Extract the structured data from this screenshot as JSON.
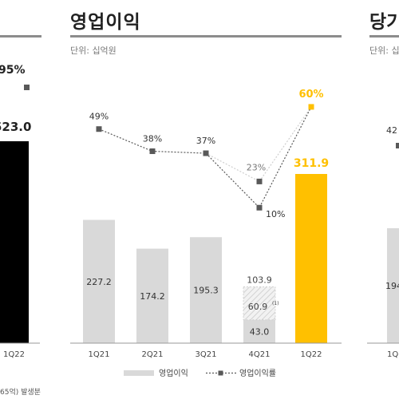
{
  "left_panel": {
    "pct_label": "95%",
    "value_label": "523.0",
    "category": "1Q22",
    "footnote": "65억) 발생분"
  },
  "main_panel": {
    "title": "영업이익",
    "unit": "단위: 십억원"
  },
  "right_panel": {
    "title": "당기",
    "unit": "단위: 십",
    "pct_label": "42",
    "value_label": "194",
    "category": "1Q"
  },
  "colors": {
    "bar_gray": "#d9d9d9",
    "bar_highlight": "#ffc000",
    "left_bar": "#000000",
    "line": "#595959",
    "highlight_text": "#ffc000"
  },
  "chart_data": {
    "type": "bar",
    "title": "영업이익",
    "categories": [
      "1Q21",
      "2Q21",
      "3Q21",
      "4Q21",
      "1Q22"
    ],
    "series": [
      {
        "name": "영업이익",
        "values": [
          227.2,
          174.2,
          195.3,
          103.9,
          311.9
        ]
      },
      {
        "name": "영업이익률",
        "values": [
          49,
          38,
          37,
          10,
          60
        ],
        "secondary_values": {
          "3": 23
        }
      }
    ],
    "bar_labels": [
      "227.2",
      "174.2",
      "195.3",
      "103.9",
      "311.9"
    ],
    "pct_labels": [
      "49%",
      "38%",
      "37%",
      "10%",
      "60%"
    ],
    "extra_pct_label": "23%",
    "stacked_4q21": {
      "base": 43.0,
      "one_off": 60.9,
      "base_label": "43.0",
      "one_off_label": "60.9",
      "footnote_mark": "(1)"
    },
    "highlight_index": 4,
    "ylim": [
      0,
      350
    ],
    "legend": [
      "영업이익",
      "영업이익률"
    ],
    "legend_position": "bottom-center"
  }
}
